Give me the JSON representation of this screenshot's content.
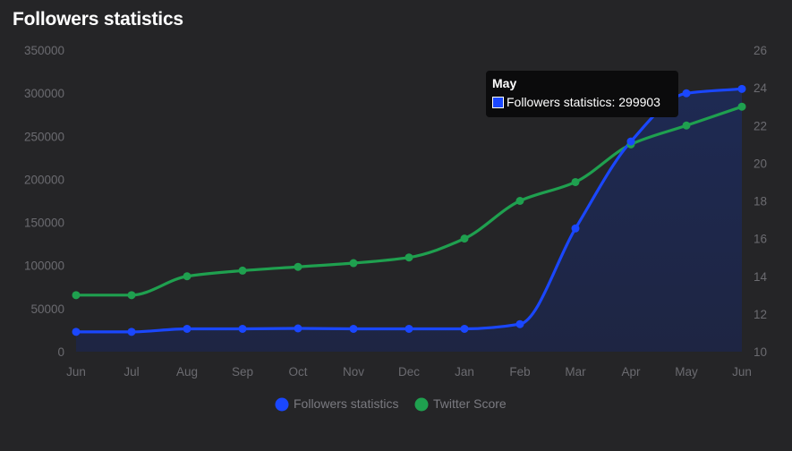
{
  "title": "Followers statistics",
  "colors": {
    "background": "#252527",
    "followers": "#1a47ff",
    "twitter": "#1fa04f",
    "area_fill": "#1e2544",
    "tick": "#6b6b70"
  },
  "tooltip": {
    "title": "May",
    "series_label": "Followers statistics",
    "value": "299903"
  },
  "chart_data": {
    "type": "line",
    "title": "Followers statistics",
    "categories": [
      "Jun",
      "Jul",
      "Aug",
      "Sep",
      "Oct",
      "Nov",
      "Dec",
      "Jan",
      "Feb",
      "Mar",
      "Apr",
      "May",
      "Jun"
    ],
    "left_axis": {
      "range": [
        0,
        350000
      ],
      "ticks": [
        "350000",
        "300000",
        "250000",
        "200000",
        "150000",
        "100000",
        "50000",
        "0"
      ]
    },
    "right_axis": {
      "range": [
        10,
        26
      ],
      "ticks": [
        "26",
        "24",
        "22",
        "20",
        "18",
        "16",
        "14",
        "12",
        "10"
      ]
    },
    "series": [
      {
        "name": "Followers statistics",
        "axis": "left",
        "values": [
          23000,
          23000,
          26500,
          26500,
          27000,
          26500,
          26500,
          26500,
          32000,
          143000,
          244000,
          299903,
          305000
        ]
      },
      {
        "name": "Twitter Score",
        "axis": "right",
        "values": [
          13.0,
          13.0,
          14.0,
          14.3,
          14.5,
          14.7,
          15.0,
          16.0,
          18.0,
          19.0,
          21.0,
          22.0,
          23.0
        ]
      }
    ],
    "legend": {
      "position": "bottom",
      "items": [
        "Followers statistics",
        "Twitter Score"
      ]
    }
  }
}
